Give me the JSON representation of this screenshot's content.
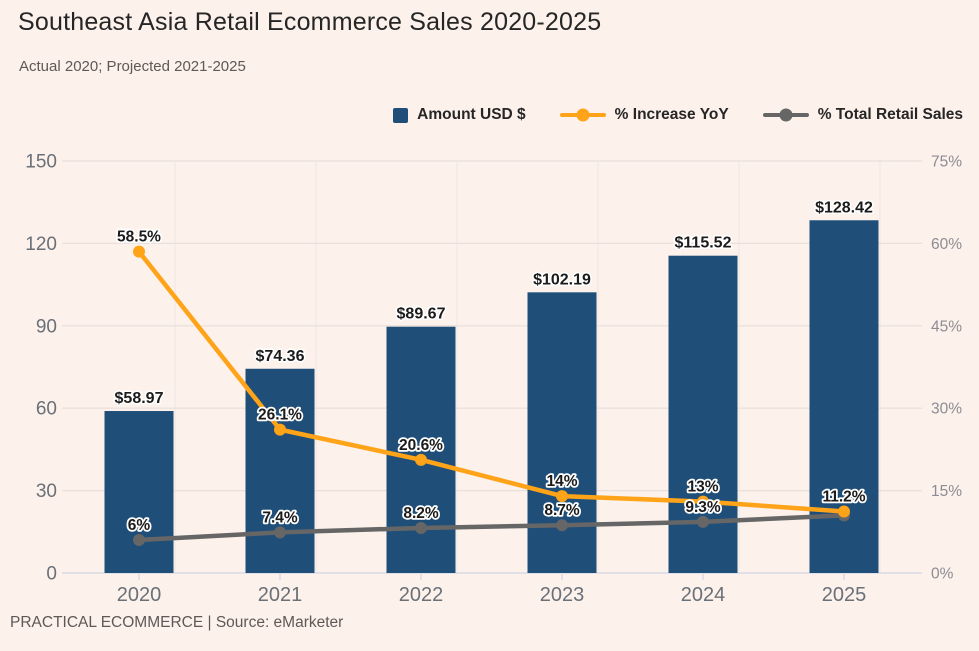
{
  "header": {
    "title": "Southeast Asia Retail Ecommerce Sales 2020-2025",
    "subtitle": "Actual 2020; Projected 2021-2025"
  },
  "footer": {
    "text": "PRACTICAL ECOMMERCE | Source: eMarketer"
  },
  "colors": {
    "background": "#FCF1EB",
    "bar": "#1F4E79",
    "line_increase": "#FFA319",
    "line_retail": "#666666",
    "gridline": "#E9DFDB",
    "gridline_vertical": "#F0E7E3",
    "axis_line": "#D6DBE5",
    "axis_label": "#6A7078",
    "axis_label_right": "#8C8C94",
    "label_text": "#1B1B1B",
    "title_text": "#262626",
    "muted_text": "#5E5856"
  },
  "chart_data": {
    "type": "bar",
    "title": "Southeast Asia Retail Ecommerce Sales 2020-2025",
    "subtitle": "Actual 2020; Projected 2021-2025",
    "source": "PRACTICAL ECOMMERCE | Source: eMarketer",
    "categories": [
      "2020",
      "2021",
      "2022",
      "2023",
      "2024",
      "2025"
    ],
    "series": [
      {
        "name": "Amount USD $",
        "type": "bar",
        "axis": "left",
        "values": [
          58.97,
          74.36,
          89.67,
          102.19,
          115.52,
          128.42
        ],
        "labels": [
          "$58.97",
          "$74.36",
          "$89.67",
          "$102.19",
          "$115.52",
          "$128.42"
        ]
      },
      {
        "name": "% Increase YoY",
        "type": "line",
        "axis": "right",
        "values": [
          58.5,
          26.1,
          20.6,
          14,
          13,
          11.2
        ],
        "labels": [
          "58.5%",
          "26.1%",
          "20.6%",
          "14%",
          "13%",
          "11.2%"
        ]
      },
      {
        "name": "% Total Retail Sales",
        "type": "line",
        "axis": "right",
        "values": [
          6,
          7.4,
          8.2,
          8.7,
          9.3,
          10.5
        ],
        "labels": [
          "6%",
          "7.4%",
          "8.2%",
          "8.7%",
          "9.3%",
          ""
        ]
      }
    ],
    "left_axis": {
      "min": 0,
      "max": 150,
      "ticks": [
        0,
        30,
        60,
        90,
        120,
        150
      ]
    },
    "right_axis": {
      "min": 0,
      "max": 75,
      "ticks": [
        0,
        15,
        30,
        45,
        60,
        75
      ],
      "tick_labels": [
        "0%",
        "15%",
        "30%",
        "45%",
        "60%",
        "75%"
      ]
    },
    "grid": true,
    "legend_position": "top-right"
  }
}
